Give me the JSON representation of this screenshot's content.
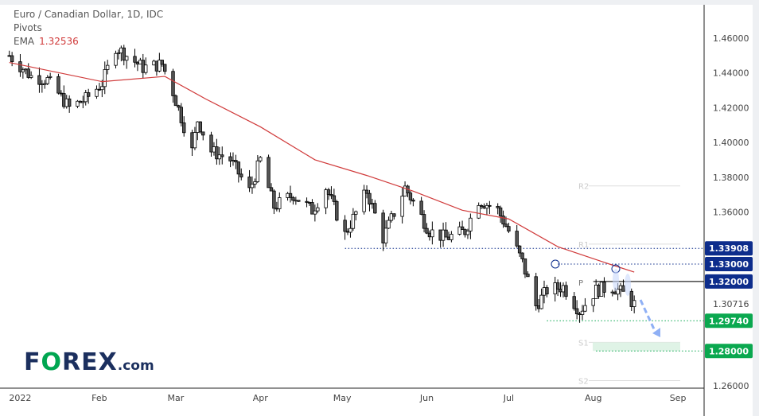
{
  "header": {
    "title": "Euro / Canadian Dollar, 1D, IDC",
    "indicator1": "Pivots",
    "ema_label": "EMA",
    "ema_value": "1.32536"
  },
  "logo": {
    "text_a": "F",
    "text_o": "O",
    "text_b": "REX",
    "text_c": ".com"
  },
  "colors": {
    "up": "#ffffff",
    "down": "#555555",
    "wick": "#000000",
    "ema": "#d03a3a",
    "navy": "#0d2d8c",
    "green": "#0aa84f",
    "pivot": "#dddddd",
    "arrow": "#8fb0f5"
  },
  "chart_data": {
    "type": "candlestick",
    "title": "Euro / Canadian Dollar, 1D, IDC",
    "ylim": [
      1.2525,
      1.4775
    ],
    "y_ticks": [
      "1.46000",
      "1.44000",
      "1.42000",
      "1.40000",
      "1.38000",
      "1.36000",
      "1.26000"
    ],
    "y_tick_values": [
      1.46,
      1.44,
      1.42,
      1.4,
      1.38,
      1.36,
      1.26
    ],
    "x_ticks": [
      {
        "label": "2022",
        "date": "2022-01-03"
      },
      {
        "label": "Feb",
        "date": "2022-02-01"
      },
      {
        "label": "Mar",
        "date": "2022-03-01"
      },
      {
        "label": "Apr",
        "date": "2022-04-01"
      },
      {
        "label": "May",
        "date": "2022-05-01"
      },
      {
        "label": "Jun",
        "date": "2022-06-01"
      },
      {
        "label": "Jul",
        "date": "2022-07-01"
      },
      {
        "label": "Aug",
        "date": "2022-08-01"
      },
      {
        "label": "Sep",
        "date": "2022-09-01"
      }
    ],
    "close_anchors": [
      [
        "2021-12-30",
        1.45
      ],
      [
        "2022-01-07",
        1.438
      ],
      [
        "2022-01-13",
        1.436
      ],
      [
        "2022-01-21",
        1.42
      ],
      [
        "2022-01-27",
        1.425
      ],
      [
        "2022-02-02",
        1.434
      ],
      [
        "2022-02-07",
        1.455
      ],
      [
        "2022-02-11",
        1.45
      ],
      [
        "2022-02-17",
        1.443
      ],
      [
        "2022-02-24",
        1.445
      ],
      [
        "2022-02-28",
        1.429
      ],
      [
        "2022-03-07",
        1.395
      ],
      [
        "2022-03-09",
        1.413
      ],
      [
        "2022-03-14",
        1.395
      ],
      [
        "2022-03-21",
        1.39
      ],
      [
        "2022-03-28",
        1.372
      ],
      [
        "2022-04-01",
        1.39
      ],
      [
        "2022-04-06",
        1.363
      ],
      [
        "2022-04-13",
        1.37
      ],
      [
        "2022-04-20",
        1.361
      ],
      [
        "2022-04-25",
        1.374
      ],
      [
        "2022-05-02",
        1.347
      ],
      [
        "2022-05-10",
        1.372
      ],
      [
        "2022-05-16",
        1.345
      ],
      [
        "2022-05-24",
        1.374
      ],
      [
        "2022-06-02",
        1.349
      ],
      [
        "2022-06-08",
        1.345
      ],
      [
        "2022-06-15",
        1.349
      ],
      [
        "2022-06-20",
        1.367
      ],
      [
        "2022-06-27",
        1.361
      ],
      [
        "2022-07-01",
        1.349
      ],
      [
        "2022-07-06",
        1.331
      ],
      [
        "2022-07-11",
        1.306
      ],
      [
        "2022-07-15",
        1.315
      ],
      [
        "2022-07-21",
        1.317
      ],
      [
        "2022-07-27",
        1.303
      ],
      [
        "2022-08-02",
        1.315
      ],
      [
        "2022-08-08",
        1.317
      ],
      [
        "2022-08-12",
        1.313
      ],
      [
        "2022-08-16",
        1.307
      ]
    ],
    "ema": [
      [
        "2021-12-30",
        1.446
      ],
      [
        "2022-02-02",
        1.435
      ],
      [
        "2022-02-25",
        1.438
      ],
      [
        "2022-03-12",
        1.425
      ],
      [
        "2022-04-01",
        1.409
      ],
      [
        "2022-04-21",
        1.39
      ],
      [
        "2022-05-10",
        1.381
      ],
      [
        "2022-05-27",
        1.372
      ],
      [
        "2022-06-14",
        1.361
      ],
      [
        "2022-07-01",
        1.356
      ],
      [
        "2022-07-19",
        1.34
      ],
      [
        "2022-08-05",
        1.331
      ],
      [
        "2022-08-16",
        1.3254
      ]
    ],
    "pivots": [
      {
        "label": "R2",
        "value": 1.375
      },
      {
        "label": "R1",
        "value": 1.3415
      },
      {
        "label": "P",
        "value": 1.3195
      },
      {
        "label": "S1",
        "value": 1.285
      },
      {
        "label": "S2",
        "value": 1.263
      }
    ],
    "levels": [
      {
        "label": "1.33908",
        "value": 1.33908,
        "color": "navy",
        "style": "dotted",
        "from": "2022-05-02"
      },
      {
        "label": "1.33000",
        "value": 1.33,
        "color": "navy",
        "style": "dotted",
        "from": "2022-07-19"
      },
      {
        "label": "1.32000",
        "value": 1.32,
        "color": "navy",
        "style": "solid",
        "from": "2022-08-01"
      },
      {
        "label": "1.29740",
        "value": 1.2974,
        "color": "green",
        "style": "dotted",
        "from": "2022-07-15"
      },
      {
        "label": "1.28000",
        "value": 1.28,
        "color": "green",
        "style": "dotted",
        "from": "2022-08-02"
      }
    ],
    "target_zone": [
      1.28,
      1.285
    ],
    "last_price": "1.30716",
    "last_price_value": 1.30716
  }
}
